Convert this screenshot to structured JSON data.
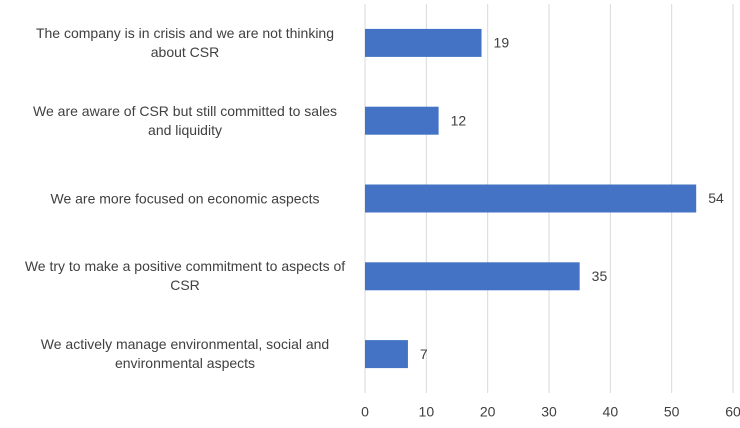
{
  "chart_data": {
    "type": "bar",
    "categories": [
      "The company is in crisis and we are not thinking about CSR",
      "We are aware of CSR but still committed to sales and liquidity",
      "We are more focused on economic aspects",
      "We try to make a positive commitment to aspects of CSR",
      "We actively manage environmental, social and environmental aspects"
    ],
    "values": [
      19,
      12,
      54,
      35,
      7
    ],
    "color": "#4472c4",
    "xlim": [
      0,
      60
    ],
    "xticks": [
      0,
      10,
      20,
      30,
      40,
      50,
      60
    ],
    "grid": true
  }
}
